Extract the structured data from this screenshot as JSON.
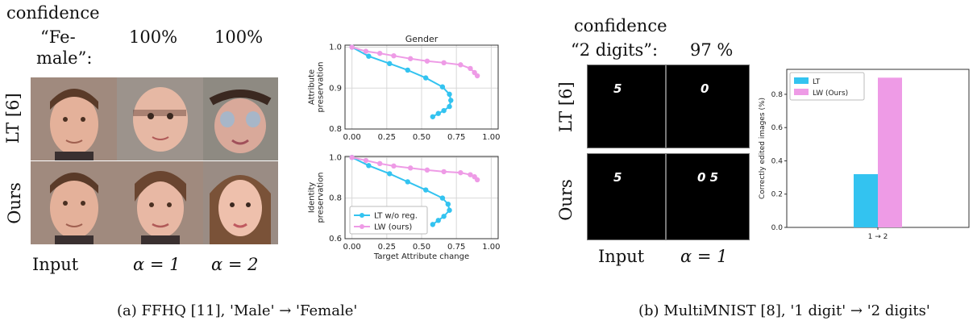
{
  "panel_a": {
    "confidence_label": "confidence",
    "class_label_line1": "“Fe-",
    "class_label_line2": "male”:",
    "conf_values": [
      "100%",
      "100%"
    ],
    "row_labels": [
      "LT [6]",
      "Ours"
    ],
    "col_labels": [
      "Input",
      "α = 1",
      "α = 2"
    ],
    "caption": "(a) FFHQ [11], 'Male' → 'Female'"
  },
  "panel_b": {
    "confidence_label": "confidence",
    "class_label": "“2 digits”:",
    "conf_value": "97 %",
    "row_labels": [
      "LT [6]",
      "Ours"
    ],
    "col_labels": [
      "Input",
      "α = 1"
    ],
    "digits": {
      "lt_input": "5",
      "lt_edit": "0",
      "ours_input": "5",
      "ours_edit": "0 5"
    },
    "caption": "(b) MultiMNIST [8], '1 digit' → '2 digits'"
  },
  "colors": {
    "lt": "#33c3f0",
    "lw": "#ee9be6"
  },
  "chart_data": [
    {
      "type": "line",
      "title": "Gender",
      "xlabel": "",
      "ylabel": "Attribute preservation",
      "xlim": [
        -0.05,
        1.05
      ],
      "ylim": [
        0.8,
        1.005
      ],
      "xticks": [
        "0.00",
        "0.25",
        "0.50",
        "0.75",
        "1.00"
      ],
      "yticks": [
        "0.8",
        "0.9",
        "1.0"
      ],
      "grid": true,
      "series": [
        {
          "name": "LT w/o reg.",
          "color": "#33c3f0",
          "x": [
            0.0,
            0.12,
            0.27,
            0.4,
            0.53,
            0.65,
            0.7,
            0.71,
            0.7,
            0.66,
            0.62,
            0.58
          ],
          "y": [
            1.0,
            0.978,
            0.96,
            0.944,
            0.925,
            0.903,
            0.885,
            0.87,
            0.855,
            0.845,
            0.838,
            0.83
          ]
        },
        {
          "name": "LW (ours)",
          "color": "#ee9be6",
          "x": [
            0.0,
            0.1,
            0.2,
            0.3,
            0.42,
            0.54,
            0.66,
            0.78,
            0.85,
            0.88,
            0.9
          ],
          "y": [
            1.0,
            0.99,
            0.985,
            0.979,
            0.972,
            0.966,
            0.962,
            0.957,
            0.948,
            0.938,
            0.93
          ]
        }
      ]
    },
    {
      "type": "line",
      "xlabel": "Target Attribute change",
      "ylabel": "Identity preservation",
      "xlim": [
        -0.05,
        1.05
      ],
      "ylim": [
        0.6,
        1.005
      ],
      "xticks": [
        "0.00",
        "0.25",
        "0.50",
        "0.75",
        "1.00"
      ],
      "yticks": [
        "0.6",
        "0.8",
        "1.0"
      ],
      "grid": true,
      "legend": "lower-left",
      "series": [
        {
          "name": "LT w/o reg.",
          "color": "#33c3f0",
          "x": [
            0.0,
            0.12,
            0.27,
            0.4,
            0.53,
            0.65,
            0.69,
            0.7,
            0.66,
            0.62,
            0.58
          ],
          "y": [
            1.0,
            0.96,
            0.92,
            0.88,
            0.84,
            0.8,
            0.77,
            0.74,
            0.71,
            0.69,
            0.67
          ]
        },
        {
          "name": "LW (ours)",
          "color": "#ee9be6",
          "x": [
            0.0,
            0.1,
            0.2,
            0.3,
            0.42,
            0.54,
            0.66,
            0.78,
            0.85,
            0.88,
            0.9
          ],
          "y": [
            1.0,
            0.985,
            0.97,
            0.958,
            0.948,
            0.938,
            0.93,
            0.925,
            0.915,
            0.905,
            0.89
          ]
        }
      ]
    },
    {
      "type": "bar",
      "ylabel": "Correctly edited images (%)",
      "categories": [
        "1 → 2"
      ],
      "ylim": [
        0,
        0.95
      ],
      "yticks": [
        "0.0",
        "0.2",
        "0.4",
        "0.6",
        "0.8"
      ],
      "grid": false,
      "legend": "top-left",
      "series": [
        {
          "name": "LT",
          "color": "#33c3f0",
          "values": [
            0.32
          ]
        },
        {
          "name": "LW (Ours)",
          "color": "#ee9be6",
          "values": [
            0.9
          ]
        }
      ]
    }
  ]
}
